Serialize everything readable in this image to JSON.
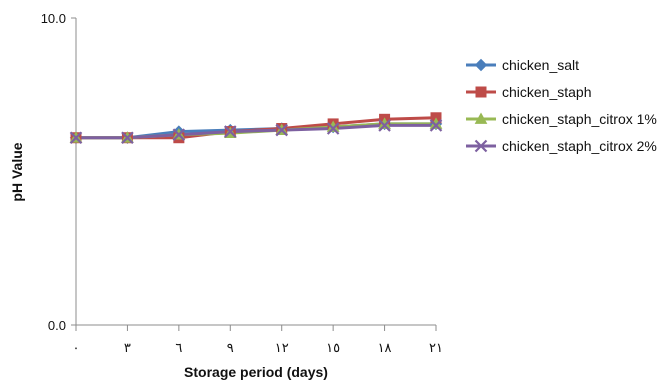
{
  "chart_data": {
    "type": "line",
    "xlabel": "Storage period (days)",
    "ylabel": "pH Value",
    "ylim": [
      0,
      10
    ],
    "y_tick_labels": [
      "0.0",
      "10.0"
    ],
    "categories": [
      "٠",
      "٣",
      "٦",
      "٩",
      "١٢",
      "١٥",
      "١٨",
      "٢١"
    ],
    "grid": false,
    "legend_position": "right",
    "series": [
      {
        "name": "chicken_salt",
        "color": "#4a7ebb",
        "marker": "diamond",
        "values": [
          6.1,
          6.1,
          6.3,
          6.35,
          6.4,
          6.45,
          6.55,
          6.55
        ]
      },
      {
        "name": "chicken_staph",
        "color": "#be4b48",
        "marker": "square",
        "values": [
          6.1,
          6.1,
          6.1,
          6.3,
          6.4,
          6.55,
          6.7,
          6.75
        ]
      },
      {
        "name": "chicken_staph_citrox 1%",
        "color": "#98b954",
        "marker": "triangle",
        "values": [
          6.1,
          6.1,
          6.2,
          6.25,
          6.35,
          6.45,
          6.55,
          6.55
        ]
      },
      {
        "name": "chicken_staph_citrox 2%",
        "color": "#7d60a0",
        "marker": "x",
        "values": [
          6.1,
          6.1,
          6.2,
          6.3,
          6.35,
          6.4,
          6.5,
          6.5
        ]
      }
    ]
  }
}
